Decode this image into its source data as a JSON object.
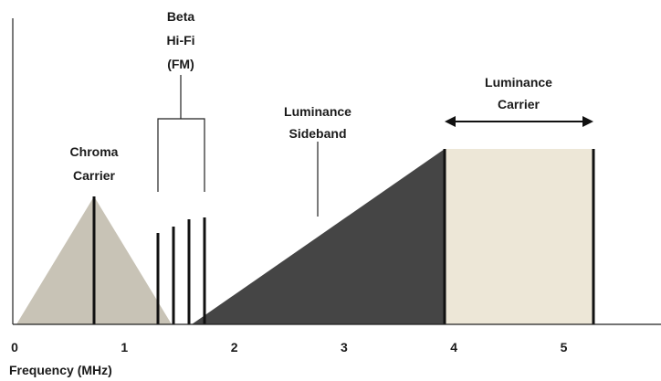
{
  "beta_label": [
    "Beta",
    "Hi-Fi",
    "(FM)"
  ],
  "chroma_label": [
    "Chroma",
    "Carrier"
  ],
  "sideband_label": [
    "Luminance",
    "Sideband"
  ],
  "carrier_label": [
    "Luminance",
    "Carrier"
  ],
  "axis": {
    "label": "Frequency (MHz)",
    "ticks": [
      0,
      1,
      2,
      3,
      4,
      5
    ]
  }
}
